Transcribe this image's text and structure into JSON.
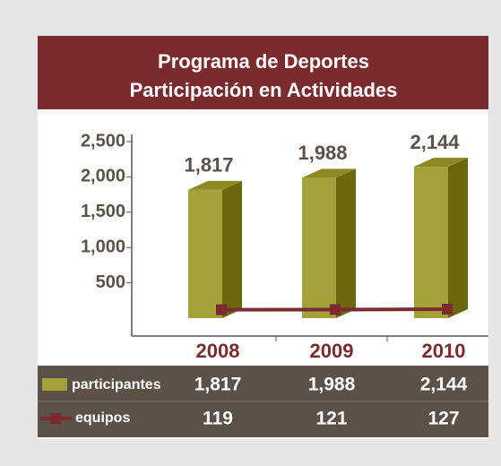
{
  "chart_data": {
    "type": "bar",
    "title": "Programa de Deportes",
    "subtitle": "Participación en Actividades",
    "categories": [
      "2008",
      "2009",
      "2010"
    ],
    "series": [
      {
        "name": "participantes",
        "color": "#a3a139",
        "values": [
          1817,
          1988,
          2144
        ],
        "value_labels": [
          "1,817",
          "1,988",
          "2,144"
        ]
      },
      {
        "name": "equipos",
        "color": "#7a2b2e",
        "type": "line",
        "values": [
          119,
          121,
          127
        ]
      }
    ],
    "ylim": [
      0,
      2500
    ],
    "yticks": [
      {
        "value": 2500,
        "label": "2,500"
      },
      {
        "value": 2000,
        "label": "2,000"
      },
      {
        "value": 1500,
        "label": "1,500"
      },
      {
        "value": 1000,
        "label": "1,000"
      },
      500
    ]
  }
}
